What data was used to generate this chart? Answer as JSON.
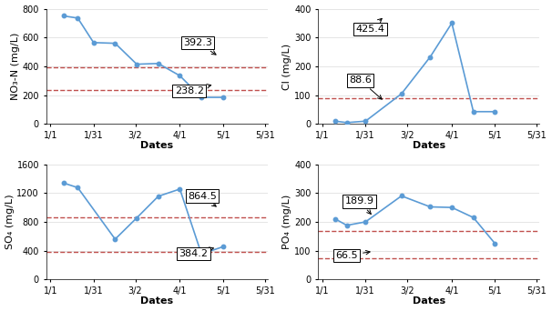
{
  "no3_x_days": [
    10,
    20,
    31,
    46,
    61,
    76,
    91,
    106,
    121
  ],
  "no3_y": [
    750,
    735,
    565,
    560,
    415,
    420,
    335,
    185,
    185
  ],
  "no3_hline1": 392.3,
  "no3_hline2": 238.2,
  "no3_ylim": [
    0,
    800
  ],
  "no3_yticks": [
    0,
    200,
    400,
    600,
    800
  ],
  "no3_ylabel": "NO₃-N (mg/L)",
  "cl_x_days": [
    10,
    18,
    31,
    56,
    76,
    91,
    106,
    121
  ],
  "cl_y": [
    10,
    5,
    10,
    105,
    233,
    350,
    43,
    43
  ],
  "cl_hline1": 425.4,
  "cl_hline2": 88.6,
  "cl_ylim": [
    0,
    400
  ],
  "cl_yticks": [
    0,
    100,
    200,
    300,
    400
  ],
  "cl_ylabel": "Cl (mg/L)",
  "so4_x_days": [
    10,
    20,
    46,
    61,
    76,
    91,
    106,
    121
  ],
  "so4_y": [
    1340,
    1275,
    560,
    855,
    1155,
    1255,
    355,
    455
  ],
  "so4_hline1": 864.5,
  "so4_hline2": 384.2,
  "so4_ylim": [
    0,
    1600
  ],
  "so4_yticks": [
    0,
    400,
    800,
    1200,
    1600
  ],
  "so4_ylabel": "SO₄ (mg/L)",
  "po4_x_days": [
    10,
    18,
    31,
    56,
    76,
    91,
    106,
    121
  ],
  "po4_y": [
    210,
    188,
    200,
    290,
    252,
    250,
    215,
    125
  ],
  "po4_hline1": 170,
  "po4_hline2": 75,
  "po4_ylim": [
    0,
    400
  ],
  "po4_yticks": [
    0,
    100,
    200,
    300,
    400
  ],
  "po4_ylabel": "PO₄ (mg/L)",
  "xtick_days": [
    1,
    31,
    60,
    91,
    121,
    150
  ],
  "xtick_labels": [
    "1/1",
    "1/31",
    "3/2",
    "4/1",
    "5/1",
    "5/31"
  ],
  "xlim": [
    -2,
    152
  ],
  "line_color": "#5B9BD5",
  "hline_color": "#C0504D",
  "bg_color": "#FFFFFF",
  "grid_color": "#E0E0E0",
  "xlabel": "Dates",
  "axis_fontsize": 8,
  "tick_fontsize": 7,
  "annot_fontsize": 8
}
